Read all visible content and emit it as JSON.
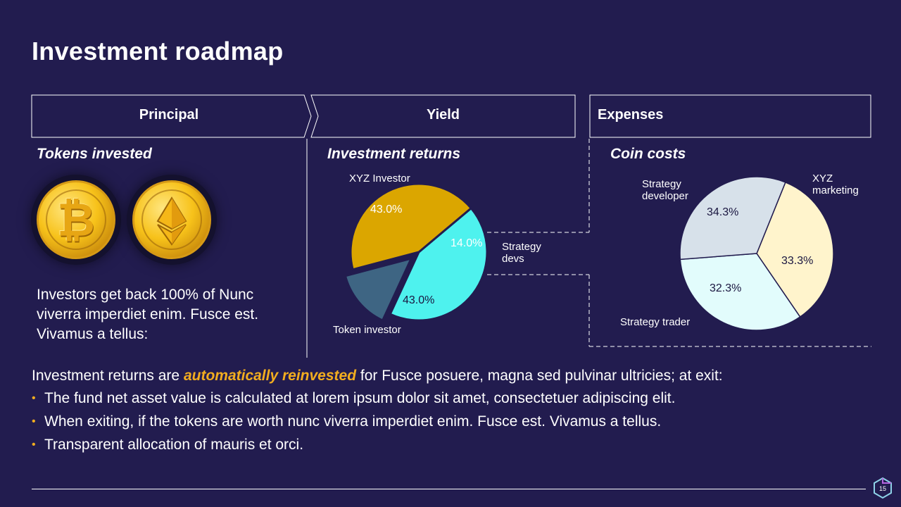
{
  "title": "Investment roadmap",
  "phases": [
    "Principal",
    "Yield",
    "Expenses"
  ],
  "principal": {
    "subtitle": "Tokens invested",
    "coins": [
      "bitcoin",
      "ethereum"
    ],
    "description": "Investors get back 100% of Nunc viverra imperdiet enim. Fusce est. Vivamus a tellus:"
  },
  "yield": {
    "subtitle": "Investment returns",
    "labels": {
      "xyz_investor": "XYZ Investor",
      "strategy_devs": "Strategy devs",
      "token_investor": "Token investor"
    }
  },
  "expenses": {
    "subtitle": "Coin costs",
    "labels": {
      "strategy_developer": "Strategy developer",
      "xyz_marketing": "XYZ marketing",
      "strategy_trader": "Strategy trader"
    }
  },
  "chart_data": [
    {
      "type": "pie",
      "title": "Investment returns",
      "slices": [
        {
          "label": "XYZ Investor",
          "value": 43.0,
          "display": "43.0%",
          "color": "#4ef2ee"
        },
        {
          "label": "Strategy devs",
          "value": 14.0,
          "display": "14.0%",
          "color": "#3e6583"
        },
        {
          "label": "Token investor",
          "value": 43.0,
          "display": "43.0%",
          "color": "#dba600"
        }
      ]
    },
    {
      "type": "pie",
      "title": "Coin costs",
      "slices": [
        {
          "label": "Strategy developer",
          "value": 34.3,
          "display": "34.3%",
          "color": "#fff4cc"
        },
        {
          "label": "XYZ marketing",
          "value": 33.3,
          "display": "33.3%",
          "color": "#e2fcfc"
        },
        {
          "label": "Strategy trader",
          "value": 32.3,
          "display": "32.3%",
          "color": "#d7e1ea"
        }
      ]
    }
  ],
  "bottom": {
    "lead_before": "Investment returns are ",
    "lead_emphasis": "automatically reinvested",
    "lead_after": " for Fusce posuere, magna sed pulvinar ultricies; at exit:",
    "bullets": [
      "The fund net asset value is calculated at lorem ipsum dolor sit amet, consectetuer adipiscing elit.",
      "When exiting, if the tokens are worth nunc viverra imperdiet enim. Fusce est. Vivamus a tellus.",
      "Transparent allocation of mauris et orci."
    ]
  },
  "page_number": "15",
  "colors": {
    "background": "#221c4f",
    "accent": "#f2ad1f",
    "text": "#ffffff"
  }
}
